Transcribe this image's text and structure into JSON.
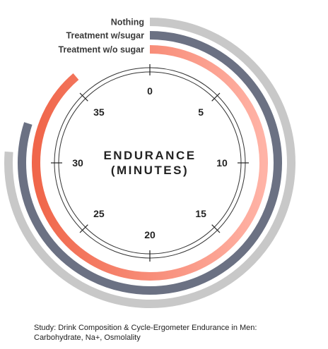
{
  "chart_data": {
    "type": "radial-bar",
    "center_label": [
      "ENDURANCE",
      "(MINUTES)"
    ],
    "axis": {
      "min": 0,
      "max": 40,
      "ticks": [
        0,
        5,
        10,
        15,
        20,
        25,
        30,
        35
      ]
    },
    "series": [
      {
        "name": "Nothing",
        "value": 30.5,
        "color": "#c8c8c8"
      },
      {
        "name": "Treatment w/sugar",
        "value": 32,
        "color": "#6b7183"
      },
      {
        "name": "Treatment w/o sugar",
        "value": 35.5,
        "color_start": "#f0664a",
        "color_end": "#ffb3a6"
      }
    ]
  },
  "caption": {
    "line1": "Study: Drink Composition & Cycle-Ergometer Endurance in Men:",
    "line2": "Carbohydrate, Na+, Osmolality"
  }
}
